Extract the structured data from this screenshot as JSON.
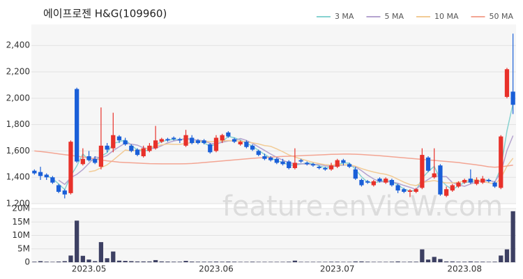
{
  "chart_data": [
    {
      "type": "candlestick",
      "title": "에이프로젠 H&G(109960)",
      "annotations": [
        "feature.enVieW.com"
      ],
      "open": [
        1450,
        1440,
        1420,
        1400,
        1340,
        1300,
        1280,
        2070,
        1500,
        1560,
        1540,
        1480,
        1640,
        1620,
        1710,
        1680,
        1640,
        1610,
        1560,
        1600,
        1620,
        1670,
        1690,
        1700,
        1690,
        1640,
        1700,
        1680,
        1680,
        1650,
        1600,
        1680,
        1740,
        1690,
        1650,
        1670,
        1640,
        1600,
        1560,
        1550,
        1540,
        1520,
        1520,
        1470,
        1530,
        1510,
        1500,
        1480,
        1470,
        1460,
        1480,
        1530,
        1500,
        1460,
        1380,
        1370,
        1340,
        1390,
        1360,
        1380,
        1340,
        1310,
        1290,
        1290,
        1320,
        1550,
        1400,
        1490,
        1260,
        1300,
        1330,
        1360,
        1390,
        1350,
        1360,
        1380,
        1360,
        1320,
        2010,
        2050
      ],
      "high": [
        1460,
        1480,
        1430,
        1410,
        1350,
        1310,
        1680,
        2080,
        1620,
        1600,
        1560,
        1930,
        1660,
        1890,
        1720,
        1700,
        1650,
        1620,
        1640,
        1660,
        1790,
        1700,
        1700,
        1710,
        1700,
        1760,
        1720,
        1690,
        1690,
        1660,
        1720,
        1730,
        1750,
        1700,
        1680,
        1680,
        1650,
        1610,
        1580,
        1560,
        1550,
        1540,
        1530,
        1620,
        1540,
        1520,
        1510,
        1490,
        1480,
        1510,
        1540,
        1540,
        1510,
        1480,
        1390,
        1380,
        1380,
        1400,
        1400,
        1390,
        1350,
        1320,
        1310,
        1320,
        1620,
        1560,
        1620,
        1500,
        1330,
        1350,
        1370,
        1390,
        1460,
        1400,
        1410,
        1390,
        1370,
        1720,
        2230,
        2490
      ],
      "low": [
        1420,
        1380,
        1380,
        1350,
        1280,
        1240,
        1270,
        1510,
        1490,
        1520,
        1500,
        1460,
        1590,
        1590,
        1660,
        1640,
        1590,
        1560,
        1550,
        1590,
        1610,
        1660,
        1670,
        1680,
        1660,
        1630,
        1650,
        1650,
        1650,
        1580,
        1590,
        1660,
        1700,
        1660,
        1640,
        1620,
        1600,
        1560,
        1530,
        1520,
        1500,
        1490,
        1460,
        1460,
        1510,
        1490,
        1480,
        1460,
        1450,
        1450,
        1470,
        1490,
        1470,
        1380,
        1330,
        1350,
        1330,
        1360,
        1350,
        1330,
        1280,
        1280,
        1250,
        1280,
        1310,
        1440,
        1390,
        1260,
        1250,
        1290,
        1320,
        1350,
        1350,
        1340,
        1350,
        1360,
        1320,
        1310,
        2000,
        1880
      ],
      "close": [
        1430,
        1410,
        1400,
        1360,
        1290,
        1270,
        1670,
        1520,
        1540,
        1530,
        1510,
        1640,
        1610,
        1720,
        1680,
        1650,
        1600,
        1570,
        1620,
        1640,
        1680,
        1690,
        1680,
        1690,
        1680,
        1720,
        1660,
        1660,
        1660,
        1590,
        1700,
        1720,
        1710,
        1670,
        1670,
        1630,
        1610,
        1570,
        1540,
        1530,
        1510,
        1500,
        1470,
        1510,
        1520,
        1500,
        1490,
        1470,
        1460,
        1490,
        1530,
        1510,
        1480,
        1390,
        1340,
        1360,
        1370,
        1370,
        1390,
        1340,
        1300,
        1290,
        1300,
        1310,
        1570,
        1450,
        1430,
        1270,
        1310,
        1340,
        1360,
        1380,
        1360,
        1380,
        1390,
        1370,
        1330,
        1710,
        2220,
        1950
      ],
      "up_color": "#e8312a",
      "down_color": "#1a5fd8",
      "series": [
        {
          "name": "3 MA",
          "color": "#86d2d0",
          "values": [
            null,
            null,
            1413,
            1390,
            1350,
            1307,
            1410,
            1487,
            1577,
            1530,
            1527,
            1560,
            1587,
            1657,
            1670,
            1683,
            1643,
            1607,
            1597,
            1610,
            1647,
            1670,
            1683,
            1687,
            1683,
            1697,
            1687,
            1680,
            1660,
            1637,
            1650,
            1670,
            1710,
            1700,
            1683,
            1657,
            1637,
            1603,
            1573,
            1547,
            1527,
            1513,
            1493,
            1493,
            1500,
            1510,
            1503,
            1487,
            1473,
            1473,
            1493,
            1510,
            1507,
            1460,
            1403,
            1363,
            1357,
            1367,
            1377,
            1367,
            1343,
            1310,
            1297,
            1300,
            1393,
            1443,
            1483,
            1383,
            1337,
            1307,
            1337,
            1360,
            1367,
            1373,
            1377,
            1380,
            1363,
            1470,
            1753,
            1960
          ]
        },
        {
          "name": "5 MA",
          "color": "#b5a3cf",
          "values": [
            null,
            null,
            null,
            null,
            1378,
            1346,
            1398,
            1422,
            1458,
            1506,
            1554,
            1548,
            1566,
            1602,
            1632,
            1660,
            1652,
            1644,
            1624,
            1616,
            1622,
            1640,
            1662,
            1676,
            1684,
            1692,
            1686,
            1682,
            1676,
            1658,
            1654,
            1666,
            1676,
            1678,
            1694,
            1680,
            1658,
            1630,
            1604,
            1576,
            1552,
            1530,
            1510,
            1504,
            1502,
            1500,
            1498,
            1498,
            1488,
            1482,
            1488,
            1492,
            1494,
            1480,
            1450,
            1416,
            1388,
            1366,
            1366,
            1366,
            1354,
            1338,
            1324,
            1308,
            1354,
            1384,
            1412,
            1406,
            1406,
            1360,
            1342,
            1332,
            1350,
            1364,
            1374,
            1376,
            1366,
            1436,
            1604,
            1716
          ]
        },
        {
          "name": "10 MA",
          "color": "#f2cb95",
          "values": [
            null,
            null,
            null,
            null,
            null,
            null,
            null,
            null,
            null,
            1442,
            1450,
            1473,
            1494,
            1530,
            1569,
            1607,
            1600,
            1605,
            1613,
            1624,
            1641,
            1646,
            1653,
            1650,
            1650,
            1657,
            1663,
            1672,
            1676,
            1671,
            1673,
            1676,
            1679,
            1677,
            1676,
            1667,
            1662,
            1653,
            1641,
            1635,
            1616,
            1594,
            1570,
            1554,
            1539,
            1526,
            1514,
            1504,
            1496,
            1492,
            1494,
            1495,
            1496,
            1484,
            1466,
            1452,
            1440,
            1430,
            1423,
            1408,
            1385,
            1363,
            1345,
            1337,
            1360,
            1369,
            1375,
            1365,
            1357,
            1357,
            1363,
            1372,
            1378,
            1385,
            1367,
            1359,
            1349,
            1393,
            1484,
            1545
          ]
        },
        {
          "name": "50 MA",
          "color": "#f3a593",
          "values": [
            1600,
            1596,
            1590,
            1584,
            1578,
            1572,
            1566,
            1560,
            1554,
            1548,
            1540,
            1532,
            1525,
            1520,
            1515,
            1512,
            1510,
            1508,
            1506,
            1504,
            1503,
            1502,
            1502,
            1502,
            1502,
            1503,
            1505,
            1508,
            1512,
            1516,
            1520,
            1524,
            1528,
            1532,
            1536,
            1540,
            1544,
            1547,
            1550,
            1553,
            1556,
            1558,
            1560,
            1562,
            1564,
            1566,
            1568,
            1570,
            1572,
            1574,
            1575,
            1576,
            1576,
            1575,
            1573,
            1570,
            1567,
            1564,
            1560,
            1556,
            1552,
            1548,
            1544,
            1540,
            1536,
            1532,
            1528,
            1524,
            1520,
            1516,
            1512,
            1506,
            1500,
            1494,
            1488,
            1480,
            1476,
            1480,
            1486,
            1492
          ]
        }
      ],
      "ylim": [
        1200,
        2560
      ],
      "yticks": [
        {
          "value": 1200,
          "label": "1,200"
        },
        {
          "value": 1400,
          "label": "1,400"
        },
        {
          "value": 1600,
          "label": "1,600"
        },
        {
          "value": 1800,
          "label": "1,800"
        },
        {
          "value": 2000,
          "label": "2,000"
        },
        {
          "value": 2200,
          "label": "2,200"
        },
        {
          "value": 2400,
          "label": "2,400"
        }
      ],
      "legend": "top-right",
      "grid": true
    },
    {
      "type": "bar",
      "categories": [
        null,
        null,
        null,
        null,
        null,
        null,
        null,
        null,
        null,
        "2023.05",
        null,
        null,
        null,
        null,
        null,
        null,
        null,
        null,
        null,
        null,
        null,
        null,
        null,
        null,
        null,
        null,
        null,
        null,
        null,
        null,
        "2023.06",
        null,
        null,
        null,
        null,
        null,
        null,
        null,
        null,
        null,
        null,
        null,
        null,
        null,
        null,
        null,
        null,
        null,
        null,
        null,
        "2023.07",
        null,
        null,
        null,
        null,
        null,
        null,
        null,
        null,
        null,
        null,
        null,
        null,
        null,
        null,
        null,
        null,
        null,
        null,
        null,
        null,
        "2023.08",
        null,
        null,
        null,
        null,
        null,
        null,
        null,
        null
      ],
      "values": [
        200000,
        400000,
        200000,
        150000,
        250000,
        400000,
        2500000,
        15500000,
        2400000,
        1000000,
        400000,
        7500000,
        1500000,
        4000000,
        600000,
        500000,
        400000,
        300000,
        300000,
        300000,
        800000,
        300000,
        250000,
        200000,
        200000,
        500000,
        250000,
        200000,
        200000,
        200000,
        250000,
        200000,
        250000,
        200000,
        150000,
        150000,
        200000,
        150000,
        150000,
        150000,
        150000,
        150000,
        200000,
        600000,
        150000,
        150000,
        150000,
        150000,
        150000,
        200000,
        200000,
        150000,
        150000,
        300000,
        300000,
        200000,
        150000,
        150000,
        150000,
        200000,
        300000,
        150000,
        200000,
        200000,
        4800000,
        1000000,
        2000000,
        1200000,
        300000,
        300000,
        200000,
        200000,
        300000,
        200000,
        200000,
        150000,
        200000,
        2500000,
        4800000,
        19000000
      ],
      "color": "#3d4063",
      "ylim": [
        0,
        20000000
      ],
      "yticks": [
        0,
        {
          "value": 5000000,
          "label": "5M"
        },
        {
          "value": 10000000,
          "label": "10M"
        },
        {
          "value": 15000000,
          "label": "15M"
        },
        {
          "value": 20000000,
          "label": "20M"
        }
      ],
      "grid": true
    }
  ]
}
